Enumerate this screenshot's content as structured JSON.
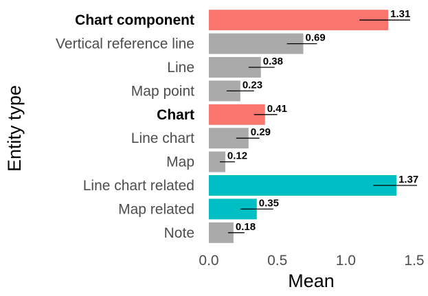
{
  "chart_data": {
    "type": "bar",
    "orientation": "horizontal",
    "xlabel": "Mean",
    "ylabel": "Entity type",
    "xlim": [
      0,
      1.5
    ],
    "x_ticks": [
      "0.0",
      "0.5",
      "1.0",
      "1.5"
    ],
    "grid": false,
    "legend": "none",
    "categories": [
      "Chart component",
      "Vertical reference line",
      "Line",
      "Map point",
      "Chart",
      "Line chart",
      "Map",
      "Line chart related",
      "Map related",
      "Note"
    ],
    "values": [
      1.31,
      0.69,
      0.38,
      0.23,
      0.41,
      0.29,
      0.12,
      1.37,
      0.35,
      0.18
    ],
    "value_labels": [
      "1.31",
      "0.69",
      "0.38",
      "0.23",
      "0.41",
      "0.29",
      "0.12",
      "1.37",
      "0.35",
      "0.18"
    ],
    "error_bars": [
      [
        1.1,
        1.47
      ],
      [
        0.57,
        0.79
      ],
      [
        0.29,
        0.48
      ],
      [
        0.13,
        0.33
      ],
      [
        0.33,
        0.5
      ],
      [
        0.2,
        0.37
      ],
      [
        0.08,
        0.19
      ],
      [
        1.2,
        1.52
      ],
      [
        0.23,
        0.47
      ],
      [
        0.14,
        0.26
      ]
    ],
    "bold_categories": [
      "Chart component",
      "Chart"
    ],
    "bar_colors": [
      "#F8766D",
      "#AAAAAA",
      "#AAAAAA",
      "#AAAAAA",
      "#F8766D",
      "#AAAAAA",
      "#AAAAAA",
      "#00BFC4",
      "#00BFC4",
      "#AAAAAA"
    ]
  }
}
